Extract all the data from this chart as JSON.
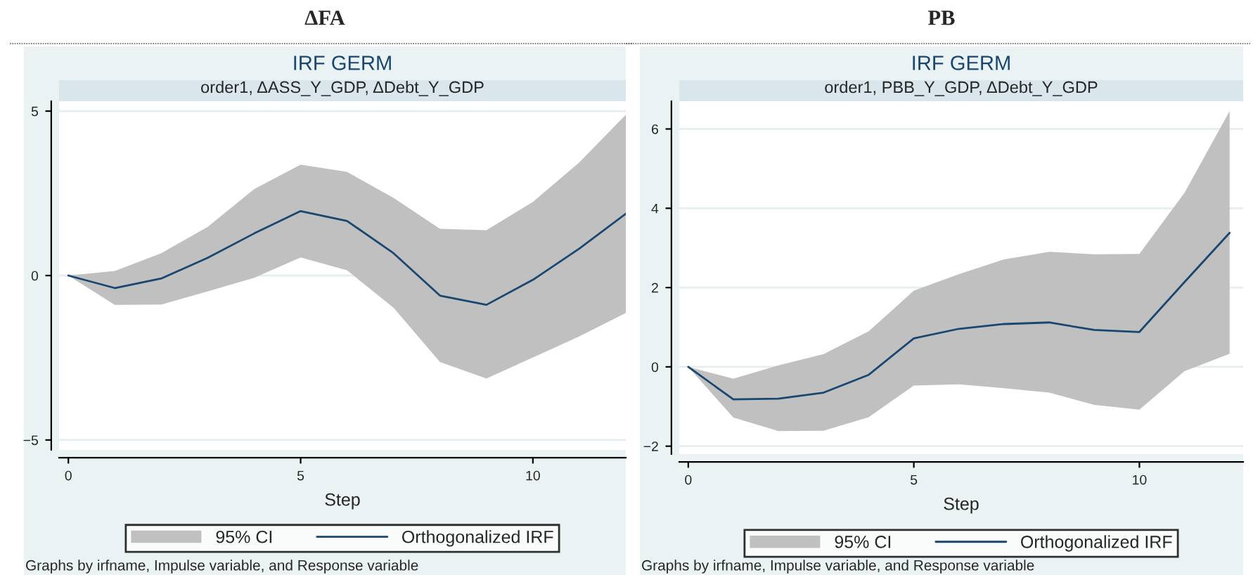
{
  "chart_data": [
    {
      "type": "line",
      "title": "ΔFA",
      "subtitle": "IRF GERM",
      "xlabel": "Step",
      "annotations": [
        "order1, ΔASS_Y_GDP, ΔDebt_Y_GDP",
        "95% CI",
        "Graphs by irfname, Impulse variable, and Response variable"
      ],
      "x": [
        0,
        1,
        2,
        3,
        4,
        5,
        6,
        7,
        8,
        9,
        10,
        11,
        12
      ],
      "series": [
        {
          "name": "Orthogonalized IRF",
          "color": "#1a476f",
          "values": [
            0,
            -0.38,
            -0.09,
            0.54,
            1.28,
            1.96,
            1.66,
            0.68,
            -0.61,
            -0.89,
            -0.13,
            0.82,
            1.88
          ],
          "lower": [
            0,
            -0.89,
            -0.88,
            -0.48,
            -0.07,
            0.55,
            0.16,
            -0.98,
            -2.63,
            -3.13,
            -2.49,
            -1.85,
            -1.14
          ],
          "upper": [
            0,
            0.14,
            0.68,
            1.48,
            2.63,
            3.37,
            3.15,
            2.36,
            1.42,
            1.38,
            2.24,
            3.44,
            4.89
          ]
        }
      ],
      "xlim": [
        -0.2,
        12.0
      ],
      "ylim": [
        -5.3,
        5.3
      ],
      "xticks": [
        0,
        5,
        10
      ],
      "yticks": [
        {
          "value": -5,
          "label": "−5"
        },
        0,
        5
      ],
      "grid": "y",
      "legend": "bottom"
    },
    {
      "type": "line",
      "title": "PB",
      "subtitle": "IRF GERM",
      "xlabel": "Step",
      "annotations": [
        "order1, PBB_Y_GDP, ΔDebt_Y_GDP",
        "95% CI",
        "Graphs by irfname, Impulse variable, and Response variable"
      ],
      "x": [
        0,
        1,
        2,
        3,
        4,
        5,
        6,
        7,
        8,
        9,
        10,
        11,
        12
      ],
      "series": [
        {
          "name": "Orthogonalized IRF",
          "color": "#1a476f",
          "values": [
            0,
            -0.82,
            -0.8,
            -0.65,
            -0.2,
            0.72,
            0.96,
            1.08,
            1.12,
            0.93,
            0.88,
            2.14,
            3.38
          ],
          "lower": [
            0,
            -1.28,
            -1.62,
            -1.61,
            -1.27,
            -0.47,
            -0.44,
            -0.54,
            -0.65,
            -0.96,
            -1.08,
            -0.11,
            0.33
          ],
          "upper": [
            0,
            -0.3,
            0.04,
            0.32,
            0.9,
            1.92,
            2.34,
            2.71,
            2.9,
            2.84,
            2.85,
            4.39,
            6.45
          ]
        }
      ],
      "xlim": [
        -0.2,
        12.3
      ],
      "ylim": [
        -2.2,
        6.7
      ],
      "xticks": [
        0,
        5,
        10
      ],
      "yticks": [
        {
          "value": -2,
          "label": "−2"
        },
        0,
        2,
        4,
        6
      ],
      "grid": "y",
      "legend": "bottom"
    }
  ]
}
